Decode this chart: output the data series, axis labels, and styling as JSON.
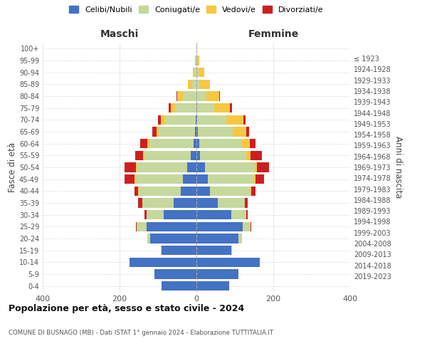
{
  "age_groups": [
    "0-4",
    "5-9",
    "10-14",
    "15-19",
    "20-24",
    "25-29",
    "30-34",
    "35-39",
    "40-44",
    "45-49",
    "50-54",
    "55-59",
    "60-64",
    "65-69",
    "70-74",
    "75-79",
    "80-84",
    "85-89",
    "90-94",
    "95-99",
    "100+"
  ],
  "birth_years": [
    "2019-2023",
    "2014-2018",
    "2009-2013",
    "2004-2008",
    "1999-2003",
    "1994-1998",
    "1989-1993",
    "1984-1988",
    "1979-1983",
    "1974-1978",
    "1969-1973",
    "1964-1968",
    "1959-1963",
    "1954-1958",
    "1949-1953",
    "1944-1948",
    "1939-1943",
    "1934-1938",
    "1929-1933",
    "1924-1928",
    "≤ 1923"
  ],
  "male": {
    "celibi": [
      90,
      110,
      175,
      90,
      120,
      130,
      85,
      60,
      40,
      35,
      25,
      15,
      8,
      4,
      2,
      0,
      0,
      0,
      0,
      0,
      0
    ],
    "coniugati": [
      0,
      0,
      0,
      3,
      8,
      25,
      45,
      80,
      110,
      125,
      130,
      120,
      115,
      95,
      80,
      55,
      35,
      12,
      5,
      2,
      0
    ],
    "vedovi": [
      0,
      0,
      0,
      0,
      0,
      0,
      0,
      1,
      1,
      2,
      2,
      3,
      4,
      5,
      10,
      12,
      15,
      10,
      5,
      2,
      0
    ],
    "divorziati": [
      0,
      0,
      0,
      0,
      0,
      2,
      5,
      10,
      10,
      25,
      30,
      22,
      20,
      10,
      8,
      5,
      2,
      0,
      0,
      0,
      0
    ]
  },
  "female": {
    "nubili": [
      85,
      110,
      165,
      90,
      110,
      120,
      90,
      55,
      35,
      30,
      22,
      10,
      8,
      4,
      2,
      2,
      0,
      0,
      0,
      0,
      0
    ],
    "coniugate": [
      0,
      0,
      0,
      2,
      8,
      20,
      40,
      70,
      105,
      120,
      130,
      120,
      110,
      90,
      75,
      45,
      25,
      10,
      5,
      2,
      0
    ],
    "vedove": [
      0,
      0,
      0,
      0,
      0,
      0,
      0,
      1,
      2,
      3,
      5,
      10,
      20,
      35,
      45,
      40,
      35,
      25,
      15,
      5,
      2
    ],
    "divorziate": [
      0,
      0,
      0,
      0,
      0,
      2,
      4,
      8,
      12,
      22,
      32,
      30,
      15,
      8,
      5,
      5,
      2,
      0,
      0,
      0,
      0
    ]
  },
  "colors": {
    "celibi_nubili": "#4472C4",
    "coniugati": "#C5D89D",
    "vedovi": "#F5C842",
    "divorziati": "#CC2020"
  },
  "xlim": 400,
  "title": "Popolazione per età, sesso e stato civile - 2024",
  "subtitle": "COMUNE DI BUSNAGO (MB) - Dati ISTAT 1° gennaio 2024 - Elaborazione TUTTITALIA.IT",
  "ylabel_left": "Fasce di età",
  "ylabel_right": "Anni di nascita",
  "xlabel_left": "Maschi",
  "xlabel_right": "Femmine",
  "bg_color": "#ffffff",
  "grid_color": "#cccccc"
}
